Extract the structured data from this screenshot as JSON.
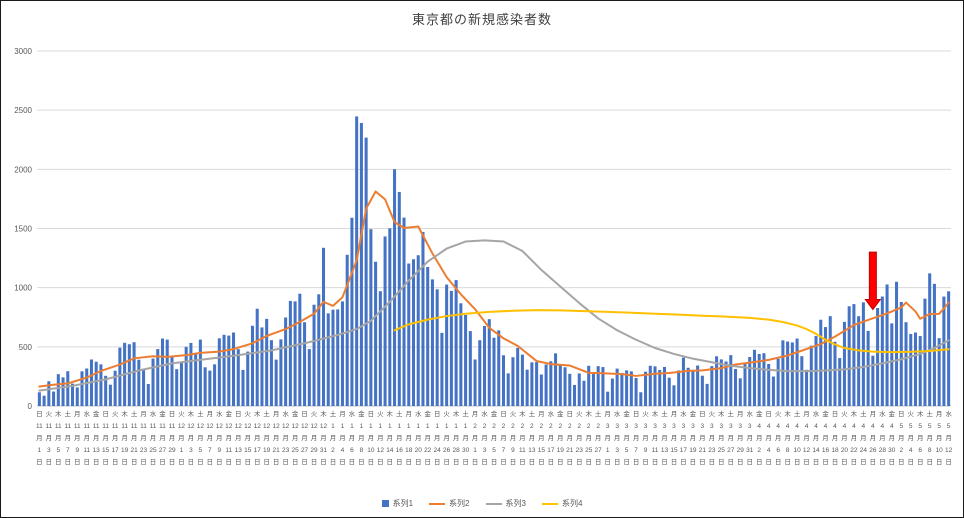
{
  "chart_data": {
    "type": "bar",
    "title": "東京都の新規感染者数",
    "xlabel": "",
    "ylabel": "",
    "ylim": [
      0,
      3000
    ],
    "y_ticks": [
      0,
      500,
      1000,
      1500,
      2000,
      2500,
      3000
    ],
    "grid": true,
    "legend_position": "bottom",
    "x_label_every": 2,
    "month_suffix": "月",
    "day_suffix": "日",
    "colors": {
      "bar": "#4472C4",
      "line2": "#ED7D31",
      "line3": "#A5A5A5",
      "line4": "#FFC000",
      "grid": "#D9D9D9",
      "axis": "#BFBFBF",
      "tick_text": "#595959",
      "annotation_red": "#FF0000"
    },
    "legend": [
      {
        "name": "系列1",
        "kind": "bar",
        "color": "#4472C4"
      },
      {
        "name": "系列2",
        "kind": "line",
        "color": "#ED7D31"
      },
      {
        "name": "系列3",
        "kind": "line",
        "color": "#A5A5A5"
      },
      {
        "name": "系列4",
        "kind": "line",
        "color": "#FFC000"
      }
    ],
    "x_labels": [
      [
        "日",
        "11",
        "1"
      ],
      [
        "火",
        "11",
        "3"
      ],
      [
        "木",
        "11",
        "5"
      ],
      [
        "土",
        "11",
        "7"
      ],
      [
        "月",
        "11",
        "9"
      ],
      [
        "水",
        "11",
        "11"
      ],
      [
        "金",
        "11",
        "13"
      ],
      [
        "日",
        "11",
        "15"
      ],
      [
        "火",
        "11",
        "17"
      ],
      [
        "木",
        "11",
        "19"
      ],
      [
        "土",
        "11",
        "21"
      ],
      [
        "月",
        "11",
        "23"
      ],
      [
        "水",
        "11",
        "25"
      ],
      [
        "金",
        "11",
        "27"
      ],
      [
        "日",
        "11",
        "29"
      ],
      [
        "火",
        "12",
        "1"
      ],
      [
        "木",
        "12",
        "3"
      ],
      [
        "土",
        "12",
        "5"
      ],
      [
        "月",
        "12",
        "7"
      ],
      [
        "水",
        "12",
        "9"
      ],
      [
        "金",
        "12",
        "11"
      ],
      [
        "日",
        "12",
        "13"
      ],
      [
        "火",
        "12",
        "15"
      ],
      [
        "木",
        "12",
        "17"
      ],
      [
        "土",
        "12",
        "19"
      ],
      [
        "月",
        "12",
        "21"
      ],
      [
        "水",
        "12",
        "23"
      ],
      [
        "金",
        "12",
        "25"
      ],
      [
        "日",
        "12",
        "27"
      ],
      [
        "火",
        "12",
        "29"
      ],
      [
        "木",
        "12",
        "31"
      ],
      [
        "土",
        "1",
        "2"
      ],
      [
        "月",
        "1",
        "4"
      ],
      [
        "水",
        "1",
        "6"
      ],
      [
        "金",
        "1",
        "8"
      ],
      [
        "日",
        "1",
        "10"
      ],
      [
        "火",
        "1",
        "12"
      ],
      [
        "木",
        "1",
        "14"
      ],
      [
        "土",
        "1",
        "16"
      ],
      [
        "月",
        "1",
        "18"
      ],
      [
        "水",
        "1",
        "20"
      ],
      [
        "金",
        "1",
        "22"
      ],
      [
        "日",
        "1",
        "24"
      ],
      [
        "火",
        "1",
        "26"
      ],
      [
        "木",
        "1",
        "28"
      ],
      [
        "土",
        "1",
        "30"
      ],
      [
        "月",
        "2",
        "1"
      ],
      [
        "水",
        "2",
        "3"
      ],
      [
        "金",
        "2",
        "5"
      ],
      [
        "日",
        "2",
        "7"
      ],
      [
        "火",
        "2",
        "9"
      ],
      [
        "木",
        "2",
        "11"
      ],
      [
        "土",
        "2",
        "13"
      ],
      [
        "月",
        "2",
        "15"
      ],
      [
        "水",
        "2",
        "17"
      ],
      [
        "金",
        "2",
        "19"
      ],
      [
        "日",
        "2",
        "21"
      ],
      [
        "火",
        "2",
        "23"
      ],
      [
        "木",
        "2",
        "25"
      ],
      [
        "土",
        "2",
        "27"
      ],
      [
        "月",
        "3",
        "1"
      ],
      [
        "水",
        "3",
        "3"
      ],
      [
        "金",
        "3",
        "5"
      ],
      [
        "日",
        "3",
        "7"
      ],
      [
        "火",
        "3",
        "9"
      ],
      [
        "木",
        "3",
        "11"
      ],
      [
        "土",
        "3",
        "13"
      ],
      [
        "月",
        "3",
        "15"
      ],
      [
        "水",
        "3",
        "17"
      ],
      [
        "金",
        "3",
        "19"
      ],
      [
        "日",
        "3",
        "21"
      ],
      [
        "火",
        "3",
        "23"
      ],
      [
        "木",
        "3",
        "25"
      ],
      [
        "土",
        "3",
        "27"
      ],
      [
        "月",
        "3",
        "29"
      ],
      [
        "水",
        "3",
        "31"
      ],
      [
        "金",
        "4",
        "2"
      ],
      [
        "日",
        "4",
        "4"
      ],
      [
        "火",
        "4",
        "6"
      ],
      [
        "木",
        "4",
        "8"
      ],
      [
        "土",
        "4",
        "10"
      ],
      [
        "月",
        "4",
        "12"
      ],
      [
        "水",
        "4",
        "14"
      ],
      [
        "金",
        "4",
        "16"
      ],
      [
        "日",
        "4",
        "18"
      ],
      [
        "火",
        "4",
        "20"
      ],
      [
        "木",
        "4",
        "22"
      ],
      [
        "土",
        "4",
        "24"
      ],
      [
        "月",
        "4",
        "26"
      ],
      [
        "水",
        "4",
        "28"
      ],
      [
        "金",
        "4",
        "30"
      ],
      [
        "日",
        "5",
        "2"
      ],
      [
        "火",
        "5",
        "4"
      ],
      [
        "木",
        "5",
        "6"
      ],
      [
        "土",
        "5",
        "8"
      ],
      [
        "月",
        "5",
        "10"
      ],
      [
        "水",
        "5",
        "12"
      ]
    ],
    "values": [
      116,
      87,
      209,
      122,
      269,
      242,
      294,
      189,
      157,
      293,
      317,
      393,
      374,
      352,
      255,
      180,
      298,
      493,
      534,
      522,
      539,
      391,
      314,
      186,
      401,
      481,
      570,
      561,
      418,
      311,
      372,
      500,
      533,
      449,
      561,
      327,
      299,
      352,
      572,
      602,
      595,
      621,
      480,
      305,
      460,
      678,
      822,
      664,
      736,
      556,
      392,
      563,
      748,
      888,
      884,
      949,
      708,
      481,
      856,
      944,
      1337,
      783,
      814,
      816,
      884,
      1278,
      1591,
      2447,
      2392,
      2268,
      1494,
      1219,
      970,
      1433,
      1502,
      2001,
      1809,
      1592,
      1204,
      1240,
      1274,
      1471,
      1175,
      1070,
      986,
      618,
      1026,
      973,
      1064,
      868,
      769,
      633,
      393,
      556,
      676,
      734,
      577,
      639,
      429,
      276,
      412,
      491,
      434,
      307,
      369,
      371,
      266,
      350,
      378,
      445,
      353,
      327,
      272,
      178,
      275,
      213,
      340,
      270,
      337,
      329,
      121,
      232,
      316,
      279,
      301,
      293,
      237,
      116,
      290,
      340,
      335,
      304,
      330,
      239,
      175,
      300,
      409,
      323,
      303,
      342,
      256,
      187,
      337,
      420,
      394,
      376,
      430,
      313,
      234,
      364,
      414,
      475,
      440,
      446,
      355,
      249,
      399,
      555,
      545,
      537,
      570,
      421,
      306,
      510,
      591,
      729,
      667,
      759,
      543,
      405,
      711,
      843,
      861,
      759,
      876,
      635,
      425,
      828,
      925,
      1027,
      698,
      1050,
      879,
      708,
      609,
      621,
      591,
      907,
      1121,
      1032,
      573,
      925,
      969
    ],
    "series2_points": [
      [
        0,
        165
      ],
      [
        3,
        180
      ],
      [
        6,
        191
      ],
      [
        10,
        240
      ],
      [
        13,
        296
      ],
      [
        17,
        350
      ],
      [
        20,
        403
      ],
      [
        24,
        420
      ],
      [
        27,
        415
      ],
      [
        31,
        430
      ],
      [
        34,
        449
      ],
      [
        38,
        460
      ],
      [
        41,
        481
      ],
      [
        45,
        530
      ],
      [
        48,
        592
      ],
      [
        52,
        650
      ],
      [
        55,
        711
      ],
      [
        58,
        780
      ],
      [
        60,
        880
      ],
      [
        62,
        846
      ],
      [
        64,
        919
      ],
      [
        67,
        1230
      ],
      [
        69,
        1668
      ],
      [
        71,
        1813
      ],
      [
        73,
        1746
      ],
      [
        75,
        1555
      ],
      [
        77,
        1504
      ],
      [
        80,
        1517
      ],
      [
        83,
        1289
      ],
      [
        86,
        1089
      ],
      [
        89,
        944
      ],
      [
        92,
        818
      ],
      [
        95,
        661
      ],
      [
        98,
        572
      ],
      [
        101,
        508
      ],
      [
        105,
        380
      ],
      [
        108,
        354
      ],
      [
        112,
        342
      ],
      [
        116,
        280
      ],
      [
        119,
        277
      ],
      [
        123,
        269
      ],
      [
        126,
        254
      ],
      [
        130,
        273
      ],
      [
        133,
        279
      ],
      [
        137,
        297
      ],
      [
        140,
        301
      ],
      [
        144,
        320
      ],
      [
        147,
        351
      ],
      [
        151,
        372
      ],
      [
        154,
        390
      ],
      [
        158,
        427
      ],
      [
        161,
        468
      ],
      [
        165,
        523
      ],
      [
        168,
        586
      ],
      [
        172,
        684
      ],
      [
        175,
        727
      ],
      [
        179,
        782
      ],
      [
        182,
        833
      ],
      [
        183,
        874
      ],
      [
        185,
        799
      ],
      [
        186,
        737
      ],
      [
        188,
        777
      ],
      [
        190,
        779
      ],
      [
        191,
        824
      ],
      [
        192,
        874
      ]
    ],
    "series3_points": [
      [
        0,
        130
      ],
      [
        7,
        170
      ],
      [
        14,
        225
      ],
      [
        21,
        300
      ],
      [
        28,
        360
      ],
      [
        35,
        395
      ],
      [
        42,
        430
      ],
      [
        49,
        470
      ],
      [
        56,
        530
      ],
      [
        63,
        600
      ],
      [
        67,
        650
      ],
      [
        70,
        720
      ],
      [
        74,
        880
      ],
      [
        78,
        1060
      ],
      [
        82,
        1220
      ],
      [
        86,
        1330
      ],
      [
        90,
        1390
      ],
      [
        94,
        1400
      ],
      [
        98,
        1390
      ],
      [
        102,
        1310
      ],
      [
        106,
        1150
      ],
      [
        110,
        1010
      ],
      [
        114,
        870
      ],
      [
        118,
        740
      ],
      [
        122,
        640
      ],
      [
        126,
        560
      ],
      [
        130,
        490
      ],
      [
        134,
        440
      ],
      [
        138,
        400
      ],
      [
        142,
        370
      ],
      [
        146,
        340
      ],
      [
        150,
        320
      ],
      [
        154,
        305
      ],
      [
        158,
        295
      ],
      [
        162,
        295
      ],
      [
        166,
        300
      ],
      [
        170,
        310
      ],
      [
        174,
        330
      ],
      [
        178,
        360
      ],
      [
        182,
        395
      ],
      [
        186,
        440
      ],
      [
        189,
        490
      ],
      [
        192,
        555
      ]
    ],
    "series4_points": [
      [
        75,
        640
      ],
      [
        78,
        690
      ],
      [
        82,
        730
      ],
      [
        86,
        760
      ],
      [
        90,
        780
      ],
      [
        95,
        795
      ],
      [
        100,
        805
      ],
      [
        105,
        810
      ],
      [
        110,
        808
      ],
      [
        115,
        802
      ],
      [
        120,
        795
      ],
      [
        125,
        788
      ],
      [
        130,
        780
      ],
      [
        135,
        772
      ],
      [
        140,
        763
      ],
      [
        145,
        755
      ],
      [
        150,
        745
      ],
      [
        154,
        730
      ],
      [
        157,
        710
      ],
      [
        160,
        680
      ],
      [
        162,
        650
      ],
      [
        164,
        610
      ],
      [
        166,
        560
      ],
      [
        168,
        520
      ],
      [
        170,
        490
      ],
      [
        173,
        470
      ],
      [
        176,
        460
      ],
      [
        180,
        455
      ],
      [
        184,
        458
      ],
      [
        188,
        465
      ],
      [
        192,
        480
      ]
    ],
    "annotation": {
      "type": "down-arrow",
      "color": "#FF0000",
      "day_index": 176,
      "from_value": 1300,
      "to_value": 815
    }
  }
}
